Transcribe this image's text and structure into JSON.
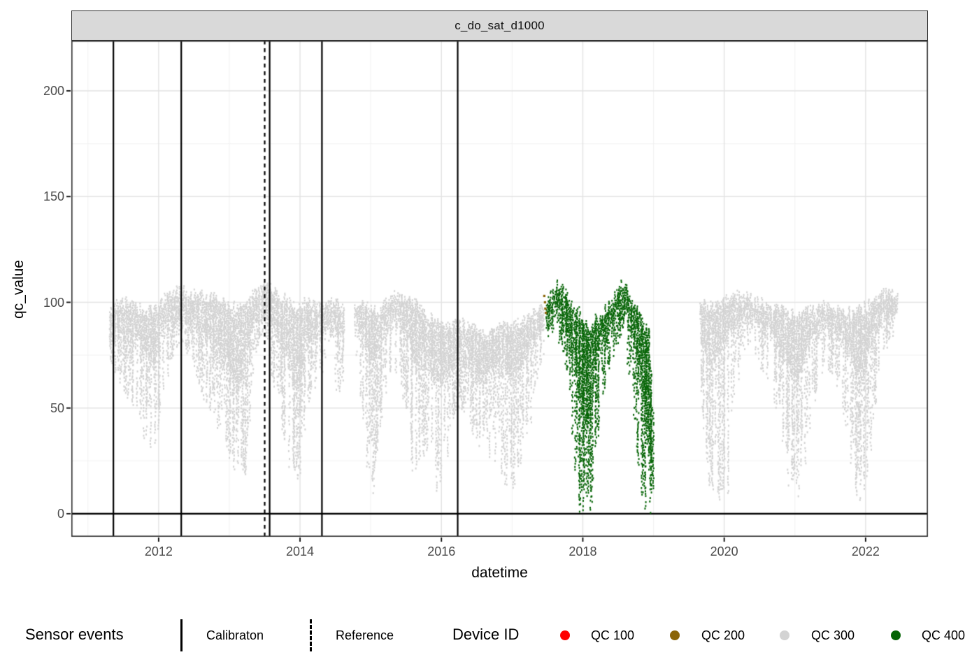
{
  "figure": {
    "strip_title": "c_do_sat_d1000",
    "x_axis_title": "datetime",
    "y_axis_title": "qc_value"
  },
  "legend": {
    "sensor_events": {
      "title": "Sensor events",
      "items": [
        {
          "label": "Calibraton",
          "style": "solid"
        },
        {
          "label": "Reference",
          "style": "dashed"
        }
      ]
    },
    "device_id": {
      "title": "Device ID",
      "items": [
        {
          "label": "QC 100",
          "color": "#FF0000"
        },
        {
          "label": "QC 200",
          "color": "#8B6508"
        },
        {
          "label": "QC 300",
          "color": "#D3D3D3"
        },
        {
          "label": "QC 400",
          "color": "#056405"
        }
      ]
    }
  },
  "colors": {
    "strip_bg": "#D9D9D9",
    "panel_border": "#2F2F2F",
    "grid_major": "#E3E3E3",
    "grid_minor": "#F2F2F2",
    "axis_text": "#4D4D4D",
    "event_line": "#000000",
    "zero_line": "#000000"
  },
  "chart_data": {
    "type": "scatter",
    "title": "c_do_sat_d1000",
    "xlabel": "datetime",
    "ylabel": "qc_value",
    "xlim": [
      2010.77,
      2022.88
    ],
    "ylim": [
      -11,
      224
    ],
    "x_ticks": [
      "2012",
      "2014",
      "2016",
      "2018",
      "2020",
      "2022"
    ],
    "x_tick_values": [
      2012,
      2014,
      2016,
      2018,
      2020,
      2022
    ],
    "x_minor_values": [
      2011,
      2013,
      2015,
      2017,
      2019,
      2021
    ],
    "y_ticks": [
      "0",
      "50",
      "100",
      "150",
      "200"
    ],
    "y_tick_values": [
      0,
      50,
      100,
      150,
      200
    ],
    "y_minor_values": [
      25,
      75,
      125,
      175
    ],
    "grid": "on",
    "legend_position": "bottom",
    "hline_y": 0,
    "events": {
      "calibration_years": [
        2011.36,
        2012.32,
        2013.57,
        2014.31,
        2016.23
      ],
      "reference_years": [
        2013.5
      ]
    },
    "series": [
      {
        "name": "QC 300",
        "color": "#D3D3D3",
        "render": "band",
        "segments": [
          [
            [
              2011.3,
              95,
              80,
              72
            ],
            [
              2011.42,
              99,
              86,
              62
            ],
            [
              2011.55,
              100,
              84,
              55
            ],
            [
              2011.68,
              97,
              82,
              48
            ],
            [
              2011.8,
              97,
              76,
              30
            ],
            [
              2011.92,
              95,
              72,
              24
            ],
            [
              2012.02,
              99,
              84,
              50
            ],
            [
              2012.15,
              104,
              90,
              68
            ],
            [
              2012.3,
              105,
              93,
              82
            ],
            [
              2012.45,
              104,
              90,
              72
            ],
            [
              2012.6,
              103,
              87,
              55
            ],
            [
              2012.75,
              102,
              80,
              42
            ],
            [
              2012.9,
              100,
              72,
              32
            ],
            [
              2013.02,
              98,
              66,
              22
            ],
            [
              2013.12,
              96,
              58,
              8
            ],
            [
              2013.22,
              98,
              72,
              20
            ],
            [
              2013.35,
              105,
              93,
              75
            ],
            [
              2013.5,
              107,
              96,
              86
            ],
            [
              2013.62,
              105,
              88,
              58
            ],
            [
              2013.75,
              102,
              78,
              35
            ],
            [
              2013.88,
              100,
              66,
              16
            ],
            [
              2013.97,
              98,
              62,
              12
            ],
            [
              2014.1,
              100,
              82,
              48
            ],
            [
              2014.25,
              97,
              86,
              62
            ],
            [
              2014.4,
              100,
              88,
              70
            ],
            [
              2014.55,
              98,
              84,
              52
            ],
            [
              2014.62,
              97,
              86,
              70
            ]
          ],
          [
            [
              2014.78,
              100,
              88,
              72
            ],
            [
              2014.92,
              98,
              80,
              28
            ],
            [
              2015.02,
              95,
              70,
              4
            ],
            [
              2015.12,
              96,
              82,
              40
            ],
            [
              2015.25,
              102,
              90,
              68
            ],
            [
              2015.4,
              103,
              89,
              58
            ],
            [
              2015.52,
              101,
              84,
              40
            ],
            [
              2015.62,
              99,
              70,
              4
            ],
            [
              2015.75,
              95,
              74,
              28
            ],
            [
              2015.88,
              92,
              64,
              10
            ],
            [
              2016.0,
              90,
              62,
              4
            ],
            [
              2016.1,
              88,
              66,
              26
            ],
            [
              2016.22,
              90,
              76,
              52
            ],
            [
              2016.35,
              89,
              73,
              46
            ],
            [
              2016.5,
              86,
              66,
              32
            ],
            [
              2016.65,
              84,
              64,
              26
            ],
            [
              2016.8,
              88,
              70,
              18
            ],
            [
              2016.95,
              88,
              66,
              6
            ],
            [
              2017.08,
              90,
              70,
              12
            ],
            [
              2017.2,
              92,
              76,
              28
            ],
            [
              2017.32,
              95,
              84,
              55
            ],
            [
              2017.44,
              97,
              88,
              76
            ]
          ],
          [
            [
              2019.65,
              100,
              86,
              55
            ],
            [
              2019.75,
              98,
              76,
              18
            ],
            [
              2019.85,
              97,
              72,
              3
            ],
            [
              2019.97,
              100,
              80,
              8
            ],
            [
              2020.08,
              102,
              86,
              3
            ],
            [
              2020.2,
              103,
              91,
              68
            ],
            [
              2020.33,
              102,
              92,
              76
            ],
            [
              2020.46,
              100,
              88,
              72
            ],
            [
              2020.6,
              99,
              86,
              62
            ],
            [
              2020.74,
              97,
              82,
              45
            ],
            [
              2020.88,
              95,
              72,
              12
            ],
            [
              2021.0,
              93,
              62,
              3
            ],
            [
              2021.12,
              95,
              74,
              18
            ],
            [
              2021.26,
              96,
              84,
              52
            ],
            [
              2021.4,
              98,
              88,
              68
            ],
            [
              2021.55,
              97,
              86,
              62
            ],
            [
              2021.68,
              95,
              80,
              45
            ],
            [
              2021.82,
              95,
              72,
              12
            ],
            [
              2021.94,
              96,
              66,
              3
            ],
            [
              2022.06,
              99,
              82,
              25
            ],
            [
              2022.2,
              103,
              91,
              65
            ],
            [
              2022.32,
              105,
              94,
              80
            ],
            [
              2022.44,
              106,
              96,
              88
            ]
          ]
        ]
      },
      {
        "name": "QC 400",
        "color": "#056405",
        "render": "band",
        "segments": [
          [
            [
              2017.48,
              101,
              89,
              84
            ],
            [
              2017.56,
              105,
              93,
              82
            ],
            [
              2017.63,
              108,
              96,
              86
            ],
            [
              2017.7,
              106,
              91,
              76
            ],
            [
              2017.78,
              102,
              86,
              58
            ],
            [
              2017.86,
              98,
              72,
              22
            ],
            [
              2017.94,
              95,
              55,
              0
            ],
            [
              2018.02,
              90,
              38,
              0
            ],
            [
              2018.1,
              88,
              48,
              0
            ],
            [
              2018.18,
              92,
              74,
              28
            ],
            [
              2018.27,
              95,
              83,
              56
            ],
            [
              2018.36,
              97,
              86,
              66
            ],
            [
              2018.45,
              103,
              90,
              76
            ],
            [
              2018.54,
              108,
              96,
              85
            ],
            [
              2018.62,
              106,
              92,
              70
            ],
            [
              2018.7,
              100,
              85,
              50
            ],
            [
              2018.78,
              96,
              70,
              15
            ],
            [
              2018.86,
              90,
              48,
              0
            ],
            [
              2018.93,
              85,
              30,
              0
            ],
            [
              2018.99,
              40,
              5,
              0
            ]
          ]
        ]
      },
      {
        "name": "QC 200",
        "color": "#8B6508",
        "render": "points",
        "points": [
          [
            2017.455,
            103
          ],
          [
            2017.465,
            100
          ],
          [
            2017.47,
            97
          ],
          [
            2017.478,
            95
          ]
        ]
      }
    ]
  }
}
